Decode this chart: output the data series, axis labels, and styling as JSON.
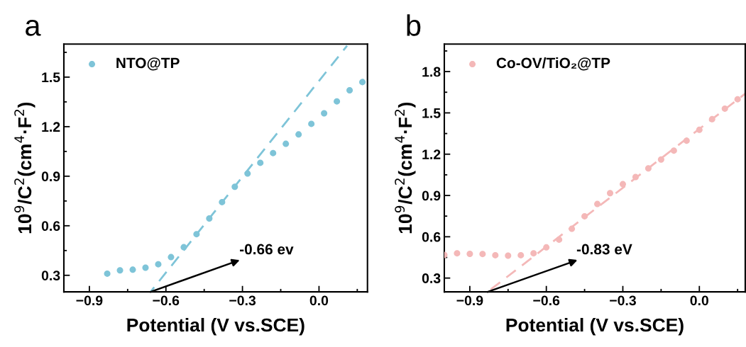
{
  "chart_data": [
    {
      "type": "scatter",
      "title": "a",
      "xlabel": "Potential (V vs.SCE)",
      "ylabel": "10$^{9}$/C$^{2}$(cm$^{4}$·F$^{2}$)",
      "xlim": [
        -1.0,
        0.19
      ],
      "xticks": [
        {
          "value": -0.9,
          "label": "−0.9"
        },
        {
          "value": -0.6,
          "label": "−0.6"
        },
        {
          "value": -0.3,
          "label": "−0.3"
        },
        {
          "value": 0.0,
          "label": "0.0"
        }
      ],
      "ylim": [
        0.2,
        1.7
      ],
      "yticks": [
        0.3,
        0.6,
        0.9,
        1.2,
        1.5
      ],
      "grid": false,
      "legend": "top left",
      "series": [
        {
          "name": "NTO@TP",
          "marker": "circle",
          "color": "#7ec4d8",
          "x": [
            -0.83,
            -0.78,
            -0.73,
            -0.68,
            -0.63,
            -0.58,
            -0.53,
            -0.48,
            -0.43,
            -0.38,
            -0.33,
            -0.28,
            -0.23,
            -0.18,
            -0.13,
            -0.08,
            -0.03,
            0.02,
            0.07,
            0.12,
            0.17
          ],
          "values": [
            0.31,
            0.33,
            0.334,
            0.346,
            0.367,
            0.41,
            0.47,
            0.549,
            0.644,
            0.743,
            0.836,
            0.916,
            0.981,
            1.04,
            1.096,
            1.153,
            1.217,
            1.281,
            1.353,
            1.42,
            1.47
          ]
        },
        {
          "type": "line",
          "color": "#7ec4d8",
          "line_style": "dashed",
          "x": [
            -0.66,
            0.11
          ],
          "values": [
            0.2,
            1.69
          ]
        }
      ],
      "annotations": [
        {
          "text": "-0.66 ev",
          "x": -0.66,
          "y": 0.2
        }
      ]
    },
    {
      "type": "scatter",
      "title": "b",
      "xlabel": "Potential (V vs.SCE)",
      "ylabel": "10$^{9}$/C$^{2}$(cm$^{4}$·F$^{2}$)",
      "xlim": [
        -1.0,
        0.18
      ],
      "xticks": [
        {
          "value": -0.9,
          "label": "−0.9"
        },
        {
          "value": -0.6,
          "label": "−0.6"
        },
        {
          "value": -0.3,
          "label": "−0.3"
        },
        {
          "value": 0.0,
          "label": "0.0"
        }
      ],
      "ylim": [
        0.2,
        2.0
      ],
      "yticks": [
        0.3,
        0.6,
        0.9,
        1.2,
        1.5,
        1.8
      ],
      "grid": false,
      "legend": "top left",
      "series": [
        {
          "name": "Co-OV/TiO₂@TP",
          "marker": "circle",
          "color": "#f4b8b8",
          "x": [
            -1.0,
            -0.95,
            -0.9,
            -0.85,
            -0.8,
            -0.75,
            -0.7,
            -0.65,
            -0.6,
            -0.55,
            -0.5,
            -0.45,
            -0.4,
            -0.35,
            -0.3,
            -0.25,
            -0.2,
            -0.15,
            -0.1,
            -0.05,
            0.0,
            0.05,
            0.1,
            0.15
          ],
          "values": [
            0.468,
            0.48,
            0.476,
            0.475,
            0.466,
            0.463,
            0.466,
            0.48,
            0.523,
            0.579,
            0.658,
            0.749,
            0.838,
            0.917,
            0.982,
            1.034,
            1.097,
            1.161,
            1.226,
            1.298,
            1.377,
            1.454,
            1.531,
            1.599
          ]
        },
        {
          "type": "line",
          "color": "#f4b8b8",
          "line_style": "dashed",
          "x": [
            -0.83,
            0.18
          ],
          "values": [
            0.2,
            1.64
          ]
        }
      ],
      "annotations": [
        {
          "text": "-0.83 eV",
          "x": -0.83,
          "y": 0.2
        }
      ]
    }
  ]
}
